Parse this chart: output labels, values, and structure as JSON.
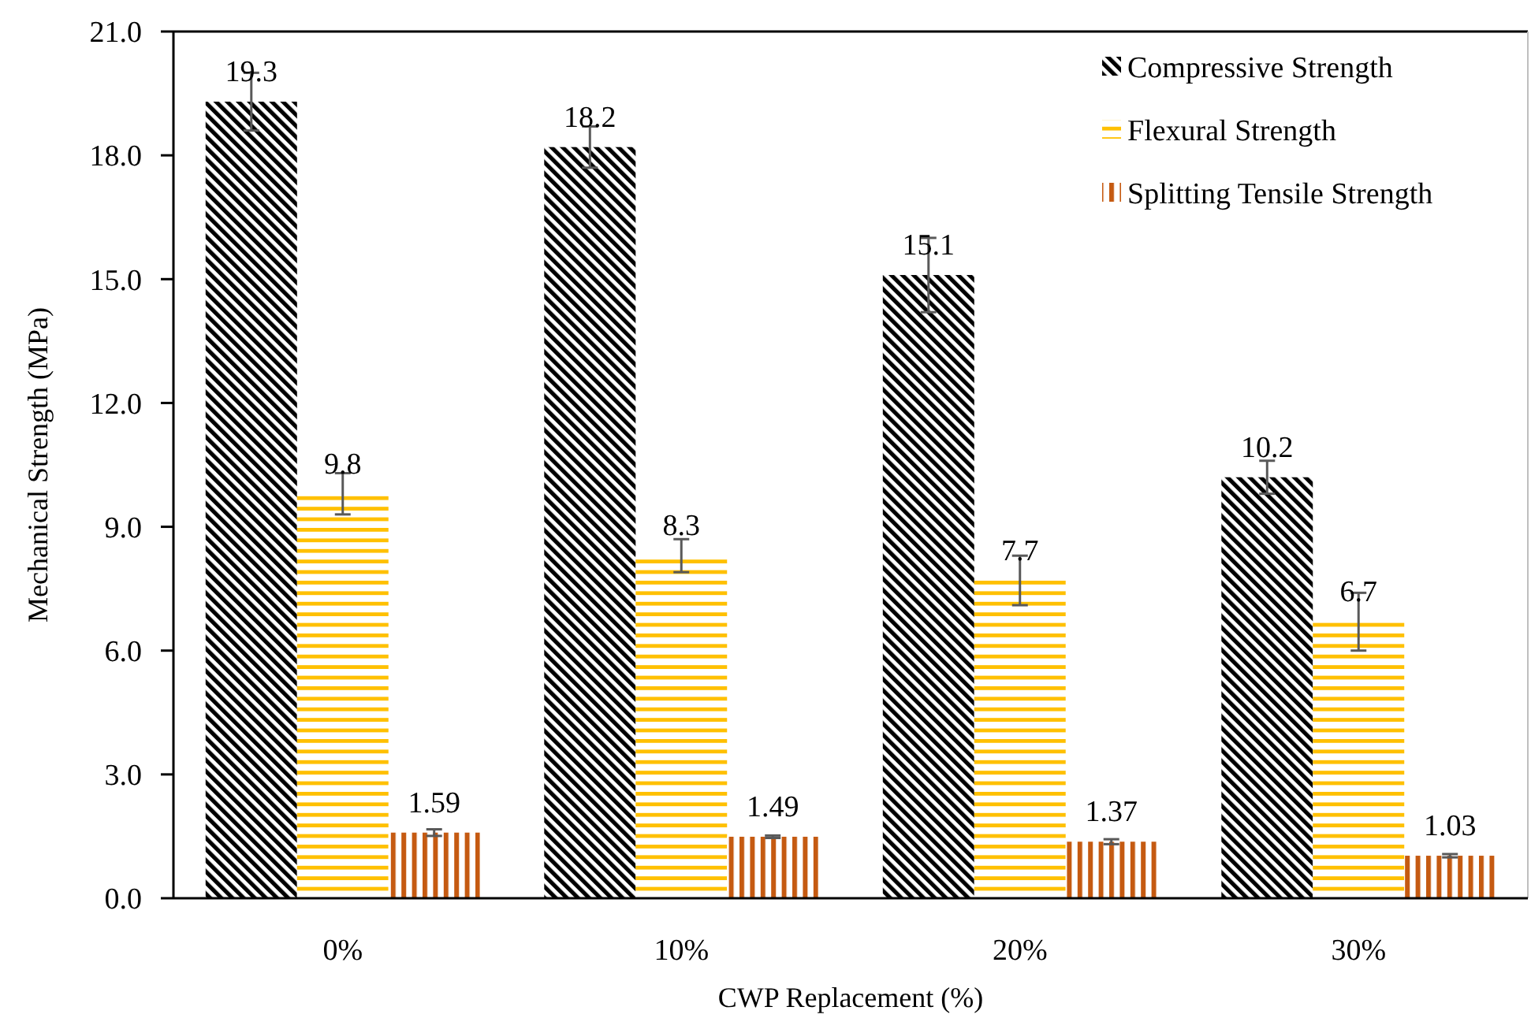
{
  "chart_data": {
    "type": "bar",
    "xlabel": "CWP Replacement (%)",
    "ylabel": "Mechanical Strength (MPa)",
    "categories": [
      "0%",
      "10%",
      "20%",
      "30%"
    ],
    "series": [
      {
        "name": "Compressive Strength",
        "color": "#000000",
        "values": [
          19.3,
          18.2,
          15.1,
          10.2
        ],
        "errors": [
          0.7,
          0.5,
          0.9,
          0.4
        ]
      },
      {
        "name": "Flexural Strength",
        "color": "#ffc000",
        "values": [
          9.8,
          8.3,
          7.7,
          6.7
        ],
        "errors": [
          0.5,
          0.4,
          0.6,
          0.7
        ]
      },
      {
        "name": "Splitting Tensile Strength",
        "color": "#c55a11",
        "values": [
          1.59,
          1.49,
          1.37,
          1.03
        ],
        "errors": [
          0.08,
          0.03,
          0.06,
          0.04
        ]
      }
    ],
    "ylim": [
      0,
      21
    ],
    "yticks": [
      {
        "value": 0,
        "label": "0.0"
      },
      {
        "value": 3,
        "label": "3.0"
      },
      {
        "value": 6,
        "label": "6.0"
      },
      {
        "value": 9,
        "label": "9.0"
      },
      {
        "value": 12,
        "label": "12.0"
      },
      {
        "value": 15,
        "label": "15.0"
      },
      {
        "value": 18,
        "label": "18.0"
      },
      {
        "value": 21,
        "label": "21.0"
      }
    ],
    "data_labels": true,
    "legend": "top right"
  }
}
